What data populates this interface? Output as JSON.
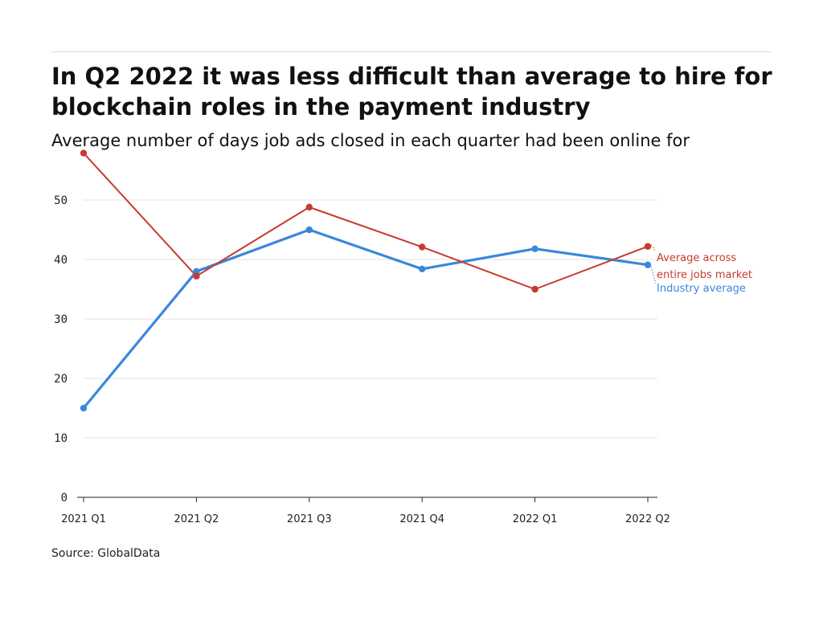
{
  "source": "Source: GlobalData",
  "colors": {
    "industry": "#3a87dc",
    "market": "#c63b2f",
    "grid": "#e3e3e3",
    "axis": "#222222"
  },
  "chart_data": {
    "type": "line",
    "title": "In Q2 2022 it was less difficult than average to hire for blockchain roles in the payment industry",
    "subtitle": "Average number of days job ads closed in each quarter had been online for",
    "xlabel": "",
    "ylabel": "",
    "categories": [
      "2021 Q1",
      "2021 Q2",
      "2021 Q3",
      "2021 Q4",
      "2022 Q1",
      "2022 Q2"
    ],
    "ylim": [
      0,
      55
    ],
    "yticks": [
      "0",
      "10",
      "20",
      "30",
      "40",
      "50"
    ],
    "grid": true,
    "legend": "direct labels at right end of lines",
    "series": [
      {
        "key": "market",
        "label_lines": [
          "Average across",
          "entire jobs market"
        ],
        "values": [
          57.9,
          37.2,
          48.8,
          42.1,
          35.0,
          42.2
        ]
      },
      {
        "key": "industry",
        "label_lines": [
          "Industry average"
        ],
        "values": [
          15.0,
          38.0,
          45.0,
          38.4,
          41.8,
          39.1
        ]
      }
    ]
  }
}
